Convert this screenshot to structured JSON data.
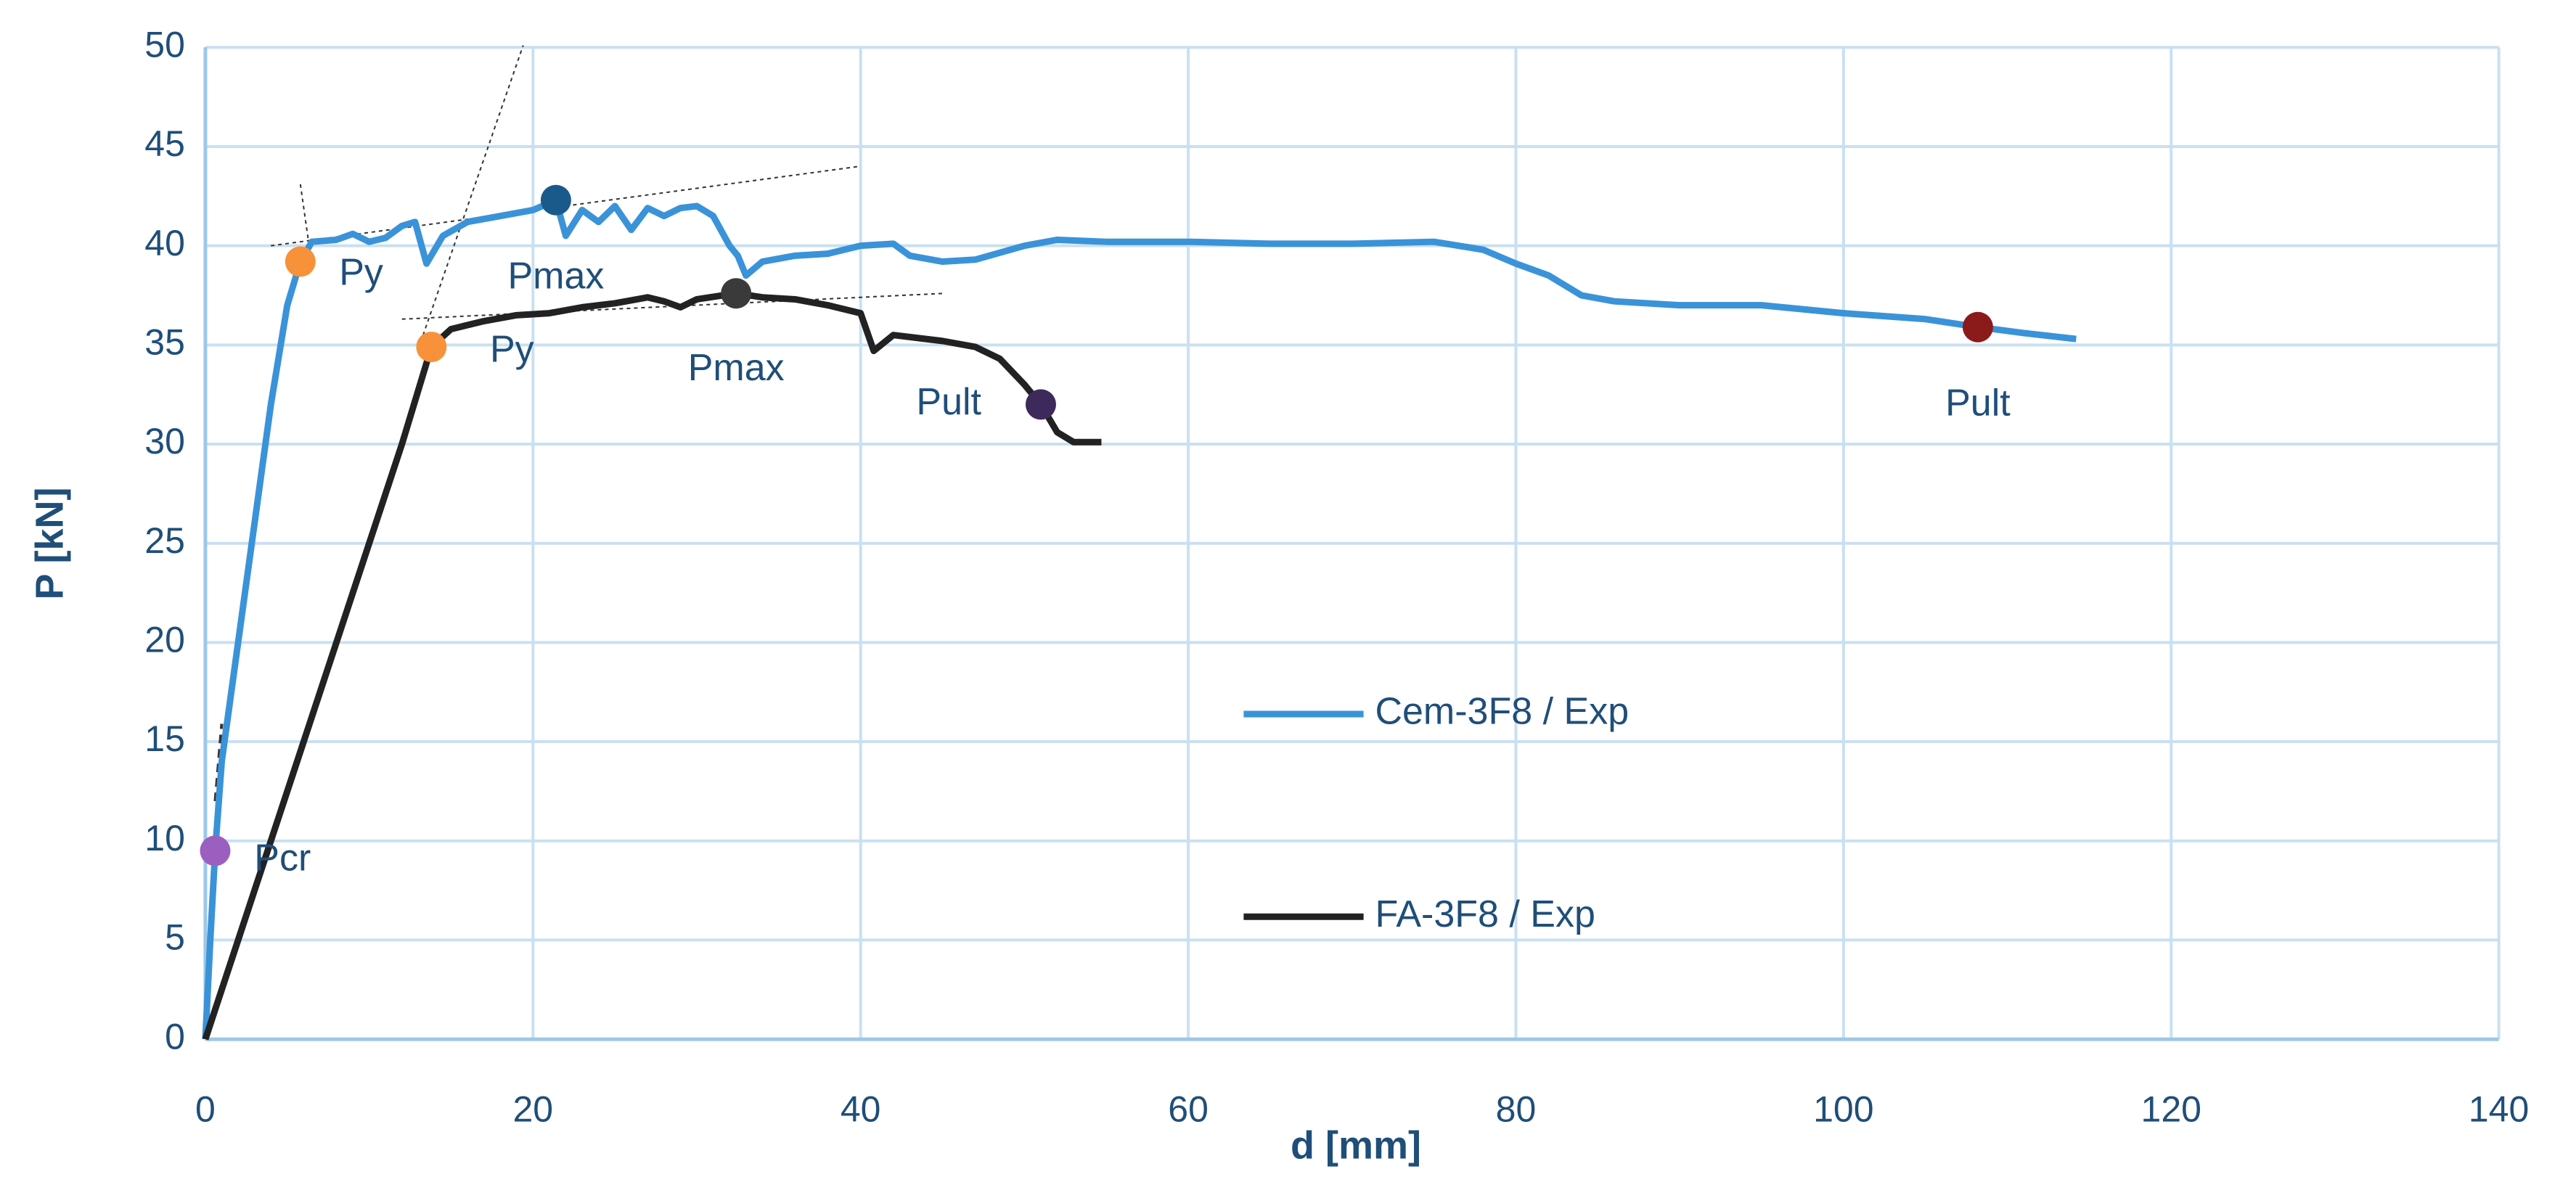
{
  "chart_data": {
    "type": "line",
    "xlabel": "d [mm]",
    "ylabel": "P [kN]",
    "xlim": [
      0,
      140
    ],
    "xticks": [
      0,
      20,
      40,
      60,
      80,
      100,
      120,
      140
    ],
    "ylim": [
      0,
      50
    ],
    "yticks": [
      0,
      5,
      10,
      15,
      20,
      25,
      30,
      35,
      40,
      45,
      50
    ],
    "grid": true,
    "series": [
      {
        "name": "Cem-3F8 / Exp",
        "color": "#3a93d8",
        "x": [
          0,
          0.3,
          0.6,
          1,
          2,
          3,
          4,
          5,
          5.8,
          6.5,
          8,
          9,
          10,
          11,
          12,
          12.8,
          13.5,
          14.5,
          16,
          18,
          20,
          21.4,
          22,
          23,
          24,
          25,
          26,
          27,
          28,
          29,
          30,
          31,
          32,
          32.5,
          33,
          34,
          36,
          38,
          40,
          42,
          43,
          45,
          47,
          50,
          52,
          55,
          60,
          65,
          70,
          75,
          78,
          80,
          82,
          84,
          86,
          90,
          95,
          100,
          105,
          108.2,
          111,
          114.2
        ],
        "values": [
          0,
          5,
          9.5,
          14,
          20,
          26,
          32,
          37,
          39.2,
          40.2,
          40.3,
          40.6,
          40.2,
          40.4,
          41,
          41.2,
          39.1,
          40.5,
          41.2,
          41.5,
          41.8,
          42.3,
          40.5,
          41.8,
          41.2,
          42,
          40.8,
          41.9,
          41.5,
          41.9,
          42,
          41.5,
          40,
          39.5,
          38.5,
          39.2,
          39.5,
          39.6,
          40,
          40.1,
          39.5,
          39.2,
          39.3,
          40,
          40.3,
          40.2,
          40.2,
          40.1,
          40.1,
          40.2,
          39.8,
          39.1,
          38.5,
          37.5,
          37.2,
          37,
          37,
          36.6,
          36.3,
          35.9,
          35.6,
          35.3
        ]
      },
      {
        "name": "FA-3F8 / Exp",
        "color": "#222222",
        "x": [
          0,
          2,
          4,
          6,
          8,
          10,
          12,
          13.8,
          15,
          17,
          19,
          21,
          23,
          25,
          27,
          28,
          29,
          30,
          32.4,
          34,
          36,
          38,
          40,
          40.8,
          42,
          45,
          47,
          48.5,
          50,
          51,
          52,
          53,
          54.7
        ],
        "values": [
          0,
          5,
          10,
          15,
          20,
          25,
          30,
          34.9,
          35.8,
          36.2,
          36.5,
          36.6,
          36.9,
          37.1,
          37.4,
          37.2,
          36.9,
          37.3,
          37.6,
          37.4,
          37.3,
          37,
          36.6,
          34.7,
          35.5,
          35.2,
          34.9,
          34.3,
          33,
          32,
          30.6,
          30.1,
          30.1
        ]
      }
    ],
    "guides": [
      {
        "x": [
          4,
          39.9
        ],
        "y": [
          40,
          44
        ]
      },
      {
        "x": [
          5.8,
          6.3
        ],
        "y": [
          43.1,
          40.2
        ]
      },
      {
        "x": [
          13,
          19.4
        ],
        "y": [
          34.8,
          50.1
        ]
      },
      {
        "x": [
          12,
          45.1
        ],
        "y": [
          36.3,
          37.6
        ]
      },
      {
        "x": [
          0.6,
          1
        ],
        "y": [
          12,
          15.9
        ]
      }
    ],
    "points": [
      {
        "label": "Pcr",
        "x": 0.6,
        "y": 9.5,
        "color": "#9b5fc0"
      },
      {
        "label": "Py",
        "x": 5.8,
        "y": 39.2,
        "color": "#f7923a"
      },
      {
        "label": "Pmax",
        "x": 21.4,
        "y": 42.3,
        "color": "#1a5a8a"
      },
      {
        "label": "Pult",
        "x": 108.2,
        "y": 35.9,
        "color": "#8b1a1a"
      },
      {
        "label": "Py",
        "x": 13.8,
        "y": 34.9,
        "color": "#f7923a"
      },
      {
        "label": "Pmax",
        "x": 32.4,
        "y": 37.6,
        "color": "#3a3a3a"
      },
      {
        "label": "Pult",
        "x": 51,
        "y": 32,
        "color": "#3d2a5a"
      }
    ]
  }
}
